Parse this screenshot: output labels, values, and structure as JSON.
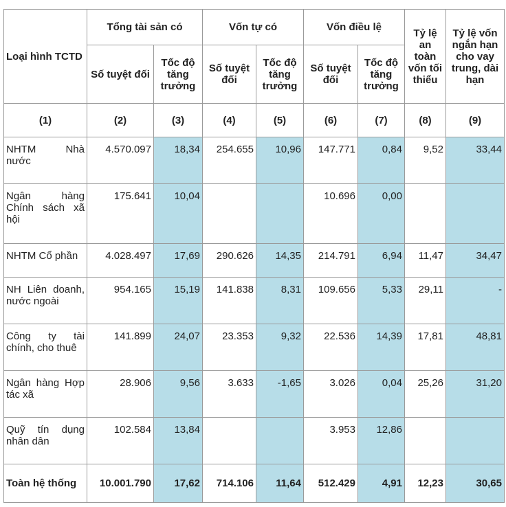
{
  "header": {
    "row_label": "Loại hình TCTD",
    "groups": [
      "Tổng tài sản có",
      "Vốn tự có",
      "Vốn điều lệ"
    ],
    "col8": "Tỷ lệ an toàn vốn tối thiểu",
    "col9": "Tỷ lệ vốn ngắn hạn cho vay trung, dài hạn",
    "sub": [
      "Số tuyệt đối",
      "Tốc độ tăng trưởng",
      "Số tuyệt đối",
      "Tốc độ tăng trưởng",
      "Số tuyệt đối",
      "Tốc độ tăng trưởng"
    ],
    "index": [
      "(1)",
      "(2)",
      "(3)",
      "(4)",
      "(5)",
      "(6)",
      "(7)",
      "(8)",
      "(9)"
    ]
  },
  "rows": [
    {
      "label": "NHTM Nhà nước",
      "values": [
        "4.570.097",
        "18,34",
        "254.655",
        "10,96",
        "147.771",
        "0,84",
        "9,52",
        "33,44"
      ]
    },
    {
      "label": "Ngân hàng Chính sách xã hội",
      "values": [
        "175.641",
        "10,04",
        "",
        "",
        "10.696",
        "0,00",
        "",
        ""
      ]
    },
    {
      "label": "NHTM Cổ phần",
      "values": [
        "4.028.497",
        "17,69",
        "290.626",
        "14,35",
        "214.791",
        "6,94",
        "11,47",
        "34,47"
      ]
    },
    {
      "label": "NH Liên doanh, nước ngoài",
      "values": [
        "954.165",
        "15,19",
        "141.838",
        "8,31",
        "109.656",
        "5,33",
        "29,11",
        "-"
      ]
    },
    {
      "label": "Công ty tài chính, cho thuê",
      "values": [
        "141.899",
        "24,07",
        "23.353",
        "9,32",
        "22.536",
        "14,39",
        "17,81",
        "48,81"
      ]
    },
    {
      "label": "Ngân hàng Hợp tác xã",
      "values": [
        "28.906",
        "9,56",
        "3.633",
        "-1,65",
        "3.026",
        "0,04",
        "25,26",
        "31,20"
      ]
    },
    {
      "label": "Quỹ tín dụng nhân dân",
      "values": [
        "102.584",
        "13,84",
        "",
        "",
        "3.953",
        "12,86",
        "",
        ""
      ]
    }
  ],
  "total": {
    "label": "Toàn hệ thống",
    "values": [
      "10.001.790",
      "17,62",
      "714.106",
      "11,64",
      "512.429",
      "4,91",
      "12,23",
      "30,65"
    ]
  },
  "colors": {
    "highlight": "#b7dde8",
    "border": "#9a9a9a",
    "text": "#222222"
  }
}
